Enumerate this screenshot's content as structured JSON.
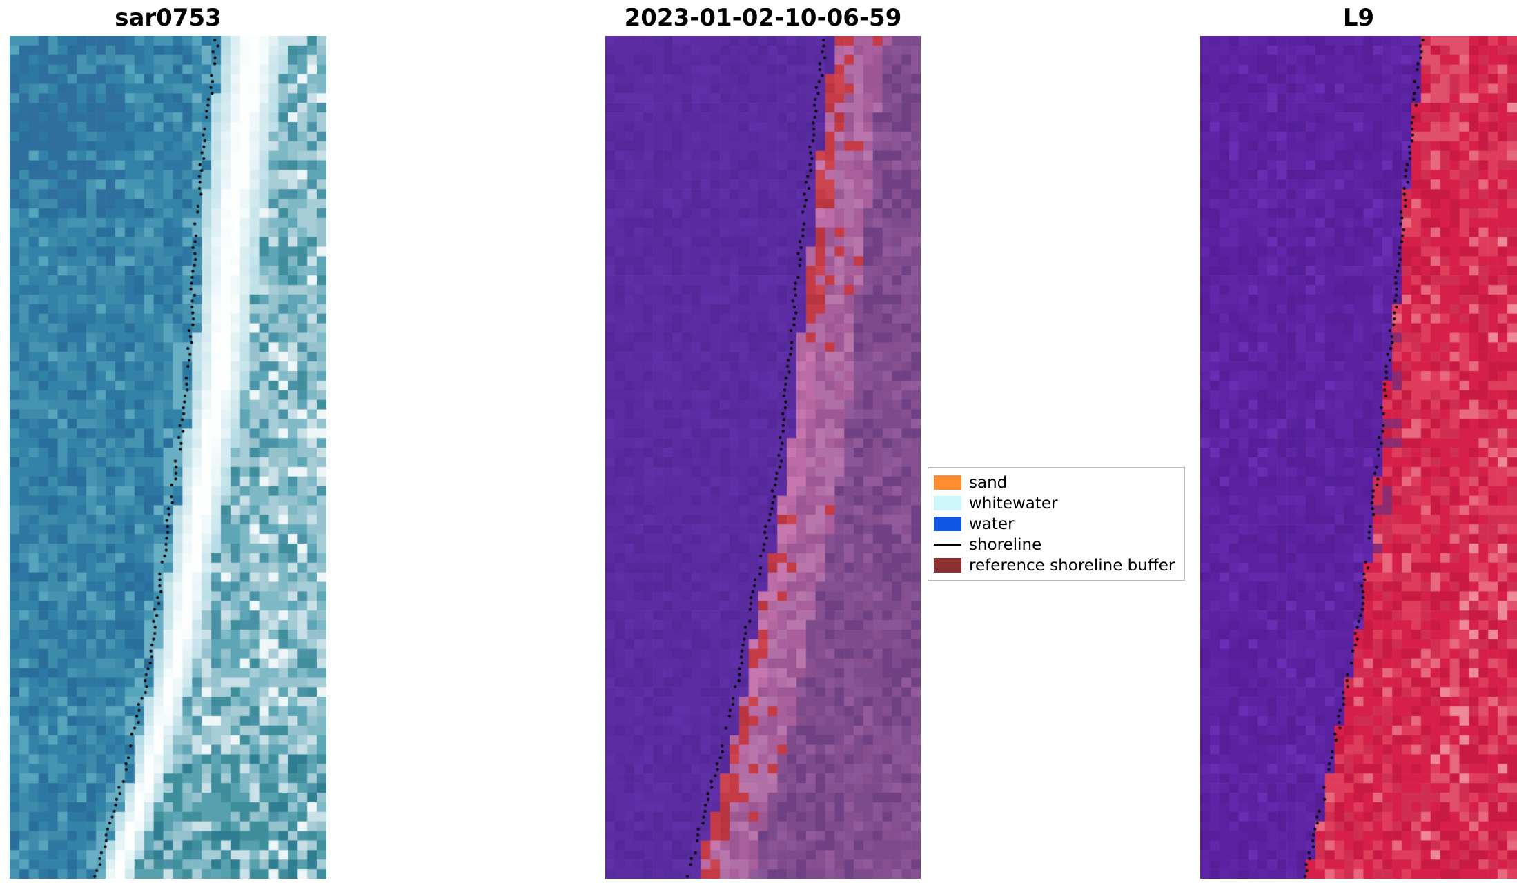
{
  "figure": {
    "background_color": "#ffffff",
    "panels": [
      {
        "id": "sar",
        "title": "sar0753"
      },
      {
        "id": "classified",
        "title": "2023-01-02-10-06-59"
      },
      {
        "id": "l9",
        "title": "L9"
      }
    ],
    "legend": {
      "items": [
        {
          "label": "sand",
          "type": "patch",
          "color": "#ff8c2e"
        },
        {
          "label": "whitewater",
          "type": "patch",
          "color": "#cdf6fb"
        },
        {
          "label": "water",
          "type": "patch",
          "color": "#1155e4"
        },
        {
          "label": "shoreline",
          "type": "line",
          "color": "#000000"
        },
        {
          "label": "reference shoreline buffer",
          "type": "patch",
          "color": "#8b2f2f"
        }
      ]
    }
  },
  "chart_data": [
    {
      "type": "heatmap",
      "title": "sar0753",
      "description": "SAR coastal image: teal water on the left, bright white sand/whitewater band running diagonally, mottled light-blue beach to the right, dotted black detected shoreline along the seaward edge of the bright band",
      "render": {
        "seed": 11,
        "cols": 33,
        "rows": 88,
        "shoreline": [
          [
            0,
            0.655
          ],
          [
            0.12,
            0.615
          ],
          [
            0.25,
            0.585
          ],
          [
            0.4,
            0.565
          ],
          [
            0.5,
            0.53
          ],
          [
            0.62,
            0.485
          ],
          [
            0.75,
            0.44
          ],
          [
            0.88,
            0.36
          ],
          [
            1,
            0.265
          ]
        ],
        "band_offset": 0.02,
        "band_width": [
          0.21,
          0.1
        ],
        "dot_offset": 0,
        "water_palette": [
          [
            "#3383a8",
            5
          ],
          [
            "#2c78a2",
            4
          ],
          [
            "#4494b2",
            3
          ],
          [
            "#2a6f9b",
            2
          ],
          [
            "#55a5bc",
            1.2
          ],
          [
            "#3d8cab",
            3
          ]
        ],
        "water_nearshore": "#69aec3",
        "water_dark": "#2f6f9e",
        "band_edge": "#b5dbe4",
        "band_center": "#fdffff",
        "beach_palette": [
          [
            "#a6ccd6",
            4
          ],
          [
            "#7fb9c6",
            4
          ],
          [
            "#5ea6b6",
            3
          ],
          [
            "#c9e0e6",
            2.5
          ],
          [
            "#4a93a6",
            2
          ],
          [
            "#eef6f8",
            1.5
          ],
          [
            "#3f8e9b",
            1.5
          ],
          [
            "#95c2cd",
            3
          ]
        ],
        "beach_bottom_palette": [
          [
            "#3f8e9b",
            2
          ],
          [
            "#57a0ad",
            2
          ],
          [
            "#2f7d90",
            1
          ]
        ]
      }
    },
    {
      "type": "heatmap",
      "title": "2023-01-02-10-06-59",
      "description": "Classified satellite scene: purple water left of shoreline, red (sand) patches along the boundary, pink/mauve beach band, darker mauve inland, dotted black shoreline",
      "render": {
        "seed": 22,
        "cols": 33,
        "rows": 88,
        "shoreline": [
          [
            0,
            0.72
          ],
          [
            0.1,
            0.68
          ],
          [
            0.2,
            0.655
          ],
          [
            0.3,
            0.625
          ],
          [
            0.4,
            0.6
          ],
          [
            0.5,
            0.575
          ],
          [
            0.6,
            0.525
          ],
          [
            0.7,
            0.47
          ],
          [
            0.8,
            0.42
          ],
          [
            0.9,
            0.35
          ],
          [
            1,
            0.28
          ]
        ],
        "boundary_offset": 0.01,
        "dot_offset": -0.02,
        "water_palette": [
          [
            "#5b2ca2",
            5
          ],
          [
            "#55289a",
            3
          ],
          [
            "#5f2fa7",
            2
          ],
          [
            "#582b9e",
            3
          ]
        ],
        "red_palette": [
          [
            "#c43b46",
            5
          ],
          [
            "#cc4450",
            2
          ],
          [
            "#b93540",
            2
          ]
        ],
        "pink_palette": [
          [
            "#bb6ca6",
            4
          ],
          [
            "#b3679f",
            3
          ],
          [
            "#c777ae",
            2
          ]
        ],
        "sand_palette": [
          [
            "#a95f9b",
            4
          ],
          [
            "#b06fa6",
            3
          ],
          [
            "#9d5794",
            3
          ],
          [
            "#c43b46",
            0.8
          ],
          [
            "#b876ab",
            2
          ]
        ],
        "inland_palette": [
          [
            "#7d4b8c",
            4
          ],
          [
            "#864f90",
            3
          ],
          [
            "#6f4083",
            3
          ],
          [
            "#8a5596",
            2
          ],
          [
            "#935a9b",
            1
          ]
        ],
        "red_zones": [
          [
            0,
            0.36
          ],
          [
            0.7,
            1.0
          ]
        ]
      }
    },
    {
      "type": "heatmap",
      "title": "L9",
      "description": "Landsat-9 false-colour scene: purple water on the left, red/crimson land on the right, dotted black shoreline along the colour boundary",
      "render": {
        "seed": 33,
        "cols": 33,
        "rows": 88,
        "shoreline": [
          [
            0,
            0.7
          ],
          [
            0.15,
            0.655
          ],
          [
            0.3,
            0.62
          ],
          [
            0.45,
            0.575
          ],
          [
            0.55,
            0.55
          ],
          [
            0.7,
            0.5
          ],
          [
            0.85,
            0.42
          ],
          [
            1,
            0.33
          ]
        ],
        "boundary_offset": 0.005,
        "dot_offset": 0,
        "water_palette": [
          [
            "#5a21a0",
            5
          ],
          [
            "#561f99",
            3
          ],
          [
            "#5e24a6",
            3
          ],
          [
            "#6228ab",
            1.5
          ]
        ],
        "water_light": "#6a2db4",
        "land_palette": [
          [
            "#d62049",
            6
          ],
          [
            "#df3d5b",
            3
          ],
          [
            "#c91a43",
            3
          ],
          [
            "#e8687d",
            1.6
          ],
          [
            "#d12f52",
            3
          ]
        ],
        "land_light_palette": [
          [
            "#e1516c",
            2
          ],
          [
            "#ef8897",
            1
          ]
        ],
        "transition_color": "#8e2a70",
        "top_pink": "#e0506b"
      }
    }
  ]
}
